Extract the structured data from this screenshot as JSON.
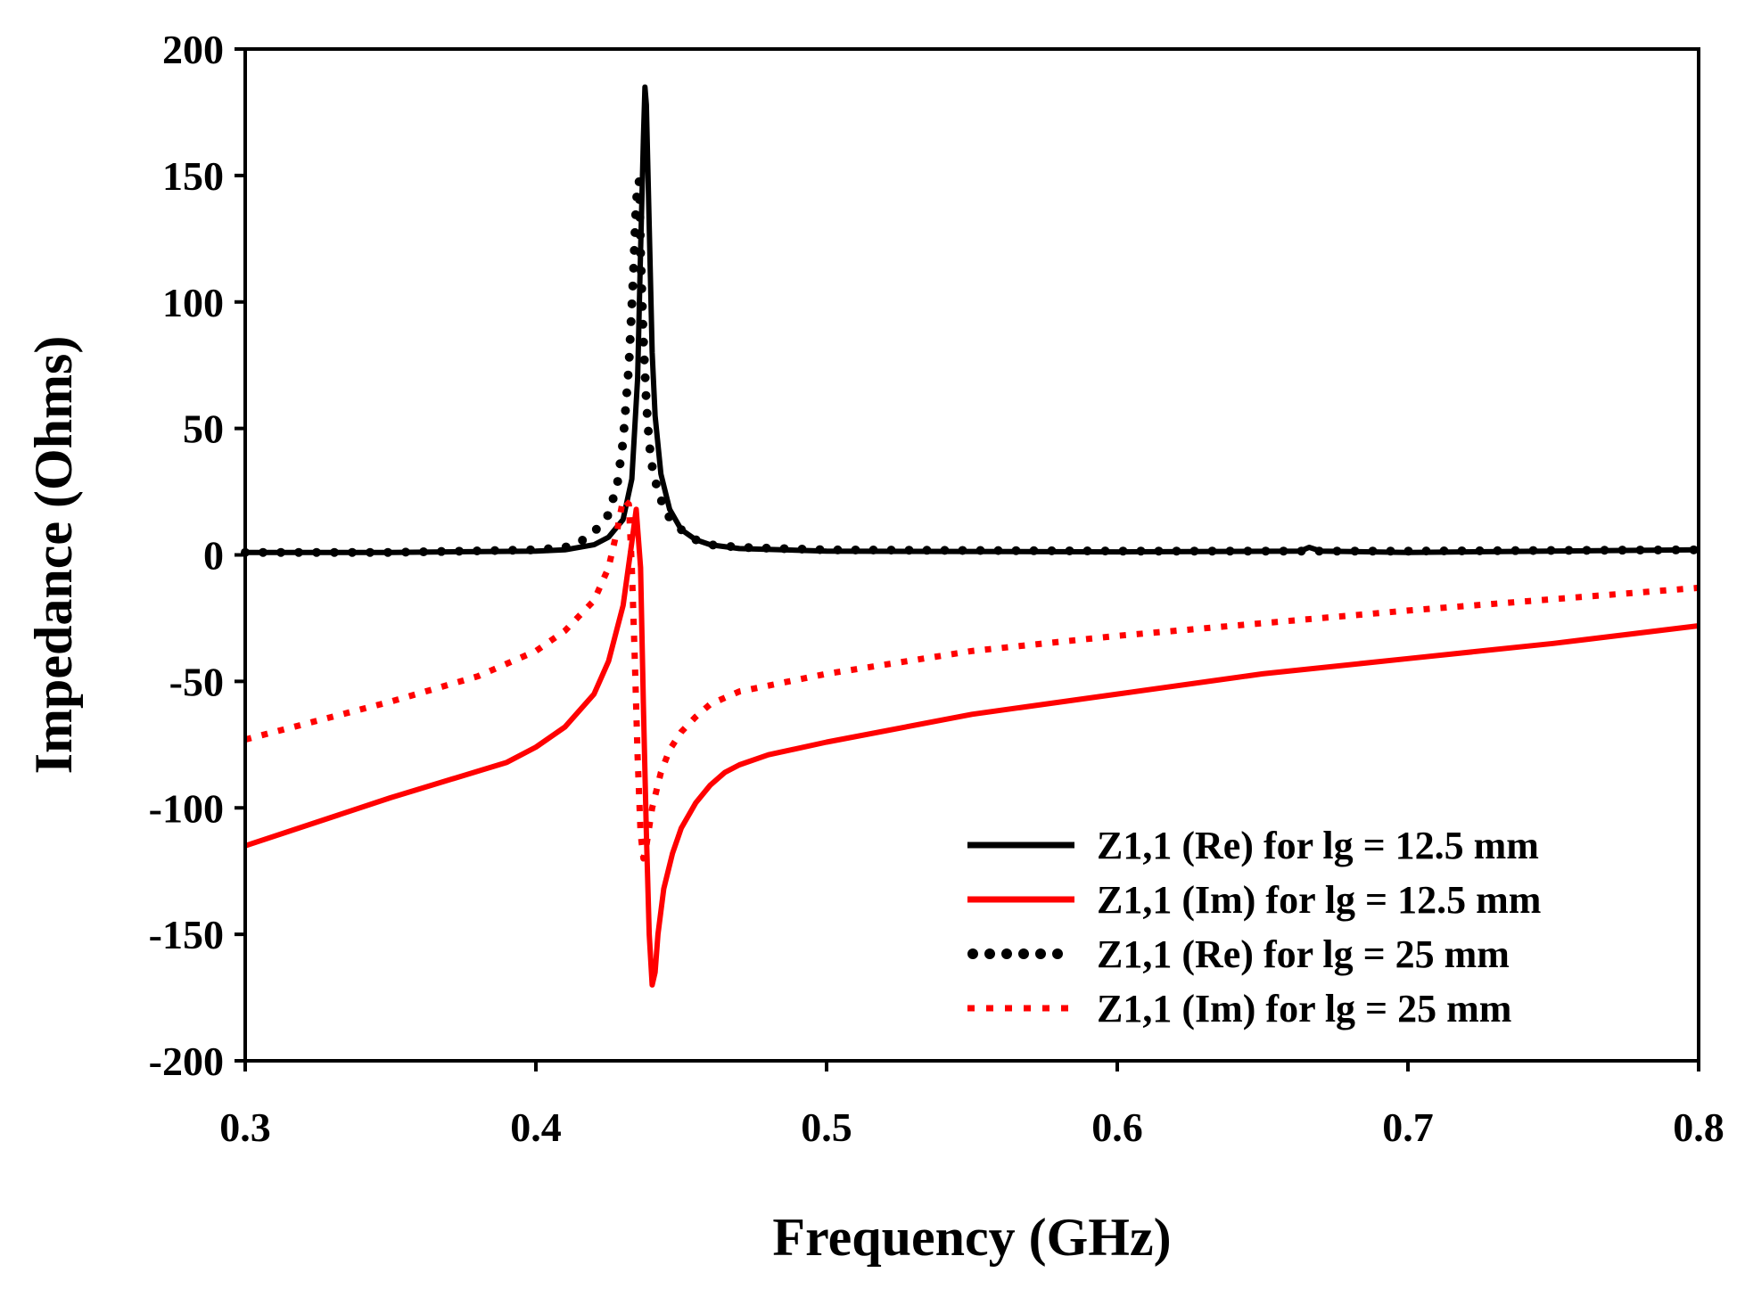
{
  "chart_data": {
    "type": "line",
    "xlabel": "Frequency (GHz)",
    "ylabel": "Impedance (Ohms)",
    "xlim": [
      0.3,
      0.8
    ],
    "ylim": [
      -200,
      200
    ],
    "xticks": [
      0.3,
      0.4,
      0.5,
      0.6,
      0.7,
      0.8
    ],
    "xtick_labels": [
      "0.3",
      "0.4",
      "0.5",
      "0.6",
      "0.7",
      "0.8"
    ],
    "yticks": [
      200,
      150,
      100,
      50,
      0,
      -50,
      -100,
      -150,
      -200
    ],
    "ytick_labels": [
      "200",
      "150",
      "100",
      "50",
      "0",
      "-50",
      "-100",
      "-150",
      "-200"
    ],
    "grid": false,
    "legend_position": "bottom-right",
    "series": [
      {
        "name": "Z1,1 (Re) for lg = 12.5 mm",
        "color": "#000000",
        "style": "solid",
        "x": [
          0.3,
          0.35,
          0.4,
          0.41,
          0.42,
          0.425,
          0.43,
          0.433,
          0.435,
          0.436,
          0.437,
          0.4375,
          0.438,
          0.439,
          0.44,
          0.441,
          0.443,
          0.446,
          0.45,
          0.455,
          0.46,
          0.47,
          0.5,
          0.6,
          0.663,
          0.666,
          0.67,
          0.7,
          0.8
        ],
        "y": [
          1,
          1,
          1.5,
          2,
          4,
          7,
          14,
          30,
          70,
          120,
          165,
          185,
          178,
          130,
          80,
          55,
          32,
          18,
          10,
          6,
          4,
          2.5,
          1.5,
          1.2,
          1.5,
          3,
          1.5,
          1,
          2
        ]
      },
      {
        "name": "Z1,1 (Im) for lg = 12.5 mm",
        "color": "#ff0000",
        "style": "solid",
        "x": [
          0.3,
          0.35,
          0.39,
          0.4,
          0.41,
          0.42,
          0.425,
          0.43,
          0.433,
          0.4345,
          0.436,
          0.437,
          0.438,
          0.439,
          0.44,
          0.441,
          0.442,
          0.444,
          0.447,
          0.45,
          0.455,
          0.46,
          0.465,
          0.47,
          0.48,
          0.5,
          0.55,
          0.6,
          0.65,
          0.7,
          0.75,
          0.8
        ],
        "y": [
          -115,
          -96,
          -82,
          -76,
          -68,
          -55,
          -42,
          -20,
          5,
          18,
          -5,
          -60,
          -110,
          -150,
          -170,
          -165,
          -150,
          -132,
          -118,
          -108,
          -98,
          -91,
          -86,
          -83,
          -79,
          -74,
          -63,
          -55,
          -47,
          -41,
          -35,
          -28
        ]
      },
      {
        "name": "Z1,1 (Re) for lg = 25 mm",
        "color": "#000000",
        "style": "dotted",
        "x": [
          0.3,
          0.35,
          0.4,
          0.41,
          0.415,
          0.42,
          0.425,
          0.428,
          0.43,
          0.432,
          0.4335,
          0.4345,
          0.4355,
          0.436,
          0.437,
          0.438,
          0.439,
          0.44,
          0.442,
          0.445,
          0.45,
          0.455,
          0.46,
          0.47,
          0.5,
          0.6,
          0.7,
          0.8
        ],
        "y": [
          1,
          1,
          2,
          3,
          5,
          9,
          16,
          28,
          45,
          75,
          110,
          140,
          148,
          120,
          85,
          60,
          44,
          35,
          25,
          16,
          10,
          6,
          4,
          3,
          2,
          1.5,
          1.5,
          2
        ]
      },
      {
        "name": "Z1,1 (Im) for lg = 25 mm",
        "color": "#ff0000",
        "style": "dotted",
        "x": [
          0.3,
          0.35,
          0.38,
          0.4,
          0.41,
          0.415,
          0.42,
          0.425,
          0.428,
          0.43,
          0.432,
          0.433,
          0.434,
          0.435,
          0.436,
          0.437,
          0.438,
          0.44,
          0.443,
          0.446,
          0.45,
          0.455,
          0.46,
          0.47,
          0.5,
          0.55,
          0.6,
          0.7,
          0.8
        ],
        "y": [
          -73,
          -58,
          -48,
          -38,
          -30,
          -24,
          -18,
          -5,
          10,
          22,
          20,
          -5,
          -40,
          -80,
          -110,
          -120,
          -115,
          -100,
          -86,
          -77,
          -70,
          -64,
          -59,
          -54,
          -47,
          -38,
          -32,
          -22,
          -13
        ]
      }
    ]
  }
}
